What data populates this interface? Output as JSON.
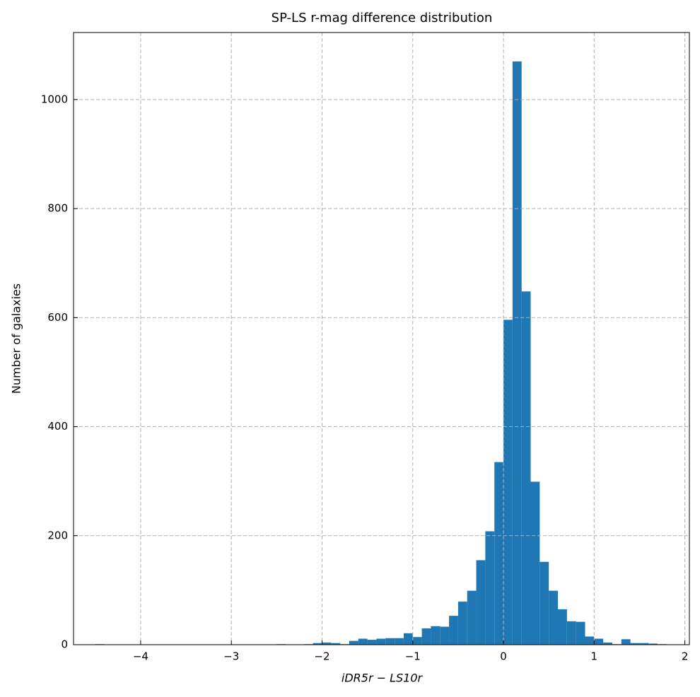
{
  "chart_data": {
    "type": "histogram",
    "title": "SP-LS r-mag difference distribution",
    "xlabel": "iDR5r − LS10r",
    "ylabel": "Number of galaxies",
    "color": "#1f77b4",
    "bins": [
      -4.5,
      -4.4,
      -4.3,
      -4.2,
      -4.1,
      -4.0,
      -3.9,
      -3.8,
      -3.7,
      -3.6,
      -3.5,
      -3.4,
      -3.3,
      -3.2,
      -3.1,
      -3.0,
      -2.9,
      -2.8,
      -2.7,
      -2.6,
      -2.5,
      -2.4,
      -2.3,
      -2.2,
      -2.1,
      -2.0,
      -1.9,
      -1.8,
      -1.7,
      -1.6,
      -1.5,
      -1.4,
      -1.3,
      -1.2,
      -1.1,
      -1.0,
      -0.9,
      -0.8,
      -0.7,
      -0.6,
      -0.5,
      -0.4,
      -0.3,
      -0.2,
      -0.1,
      0,
      0.1,
      0.2,
      0.3,
      0.4,
      0.5,
      0.6,
      0.7,
      0.8,
      0.9,
      1.0,
      1.1,
      1.2,
      1.3,
      1.4,
      1.5,
      1.6,
      1.7,
      1.8
    ],
    "counts": [
      1,
      0,
      0,
      0,
      0,
      0,
      0,
      0,
      0,
      0,
      0,
      0,
      0,
      0,
      0,
      0,
      0,
      0,
      0,
      0,
      1,
      0,
      0,
      1,
      3,
      4,
      3,
      1,
      7,
      11,
      9,
      11,
      12,
      12,
      21,
      14,
      30,
      34,
      33,
      53,
      79,
      99,
      155,
      208,
      335,
      596,
      1070,
      648,
      299,
      152,
      99,
      65,
      43,
      42,
      15,
      11,
      4,
      1,
      10,
      3,
      3,
      2,
      1
    ],
    "xlim": [
      -4.74,
      2.05
    ],
    "ylim": [
      0,
      1123
    ],
    "xticks": [
      {
        "value": -4,
        "label": "−4"
      },
      {
        "value": -3,
        "label": "−3"
      },
      {
        "value": -2,
        "label": "−2"
      },
      {
        "value": -1,
        "label": "−1"
      },
      0,
      1,
      2
    ],
    "yticks": [
      0,
      200,
      400,
      600,
      800,
      1000
    ],
    "grid": true
  }
}
